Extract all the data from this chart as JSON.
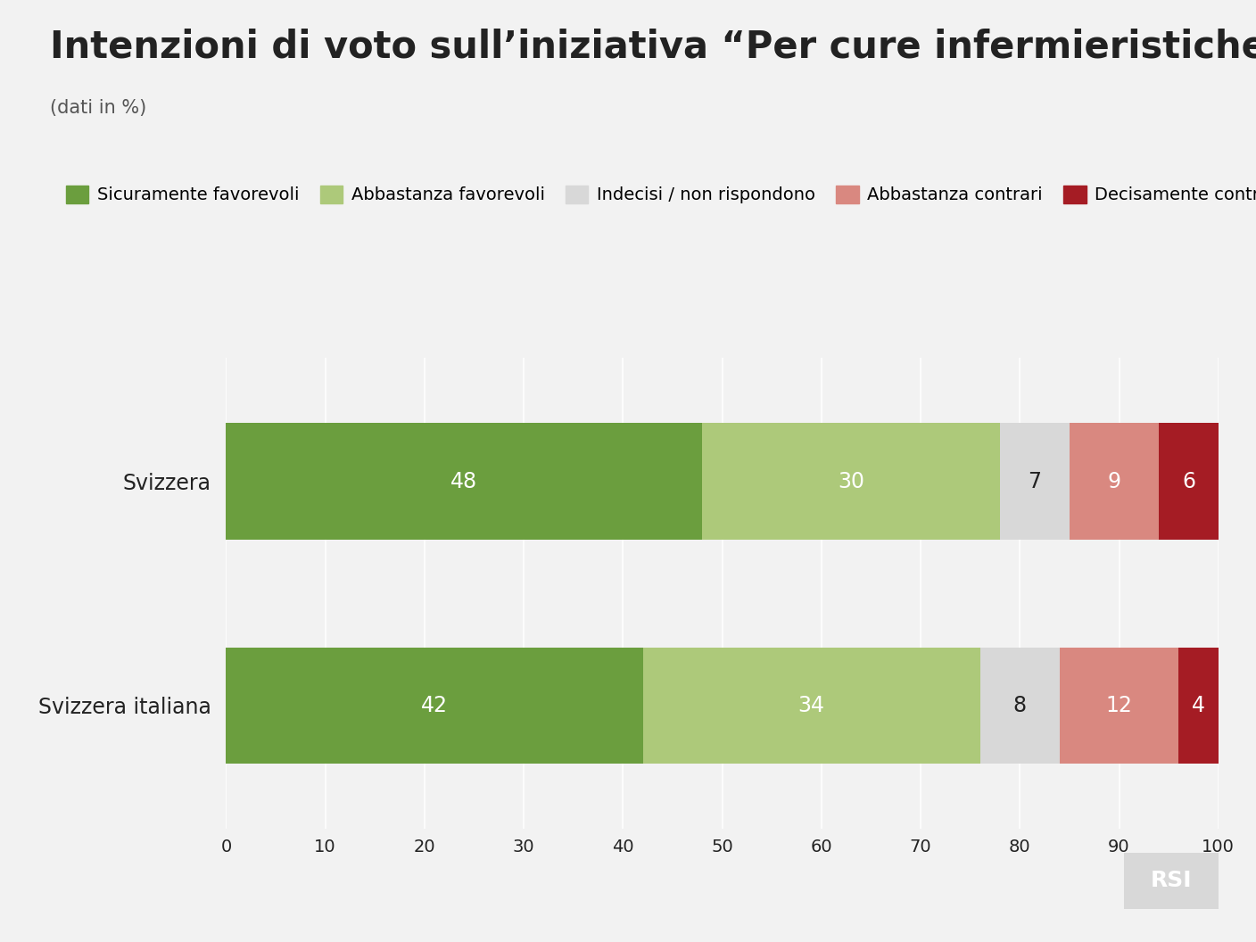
{
  "title": "Intenzioni di voto sull’iniziativa “Per cure infermieristiche forti”",
  "subtitle": "(dati in %)",
  "categories": [
    "Svizzera",
    "Svizzera italiana"
  ],
  "segments": [
    {
      "label": "Sicuramente favorevoli",
      "color": "#6b9e3e",
      "values": [
        48,
        42
      ]
    },
    {
      "label": "Abbastanza favorevoli",
      "color": "#adc97a",
      "values": [
        30,
        34
      ]
    },
    {
      "label": "Indecisi / non rispondono",
      "color": "#d8d8d8",
      "values": [
        7,
        8
      ]
    },
    {
      "label": "Abbastanza contrari",
      "color": "#d98880",
      "values": [
        9,
        12
      ]
    },
    {
      "label": "Decisamente contrari",
      "color": "#a51c24",
      "values": [
        6,
        4
      ]
    }
  ],
  "xlim": [
    0,
    100
  ],
  "xticks": [
    0,
    10,
    20,
    30,
    40,
    50,
    60,
    70,
    80,
    90,
    100
  ],
  "background_color": "#f2f2f2",
  "bar_height": 0.52,
  "text_color_light": "#ffffff",
  "text_color_dark": "#222222",
  "label_fontsize": 17,
  "tick_fontsize": 14,
  "title_fontsize": 30,
  "subtitle_fontsize": 15,
  "legend_fontsize": 14,
  "value_fontsize": 17
}
